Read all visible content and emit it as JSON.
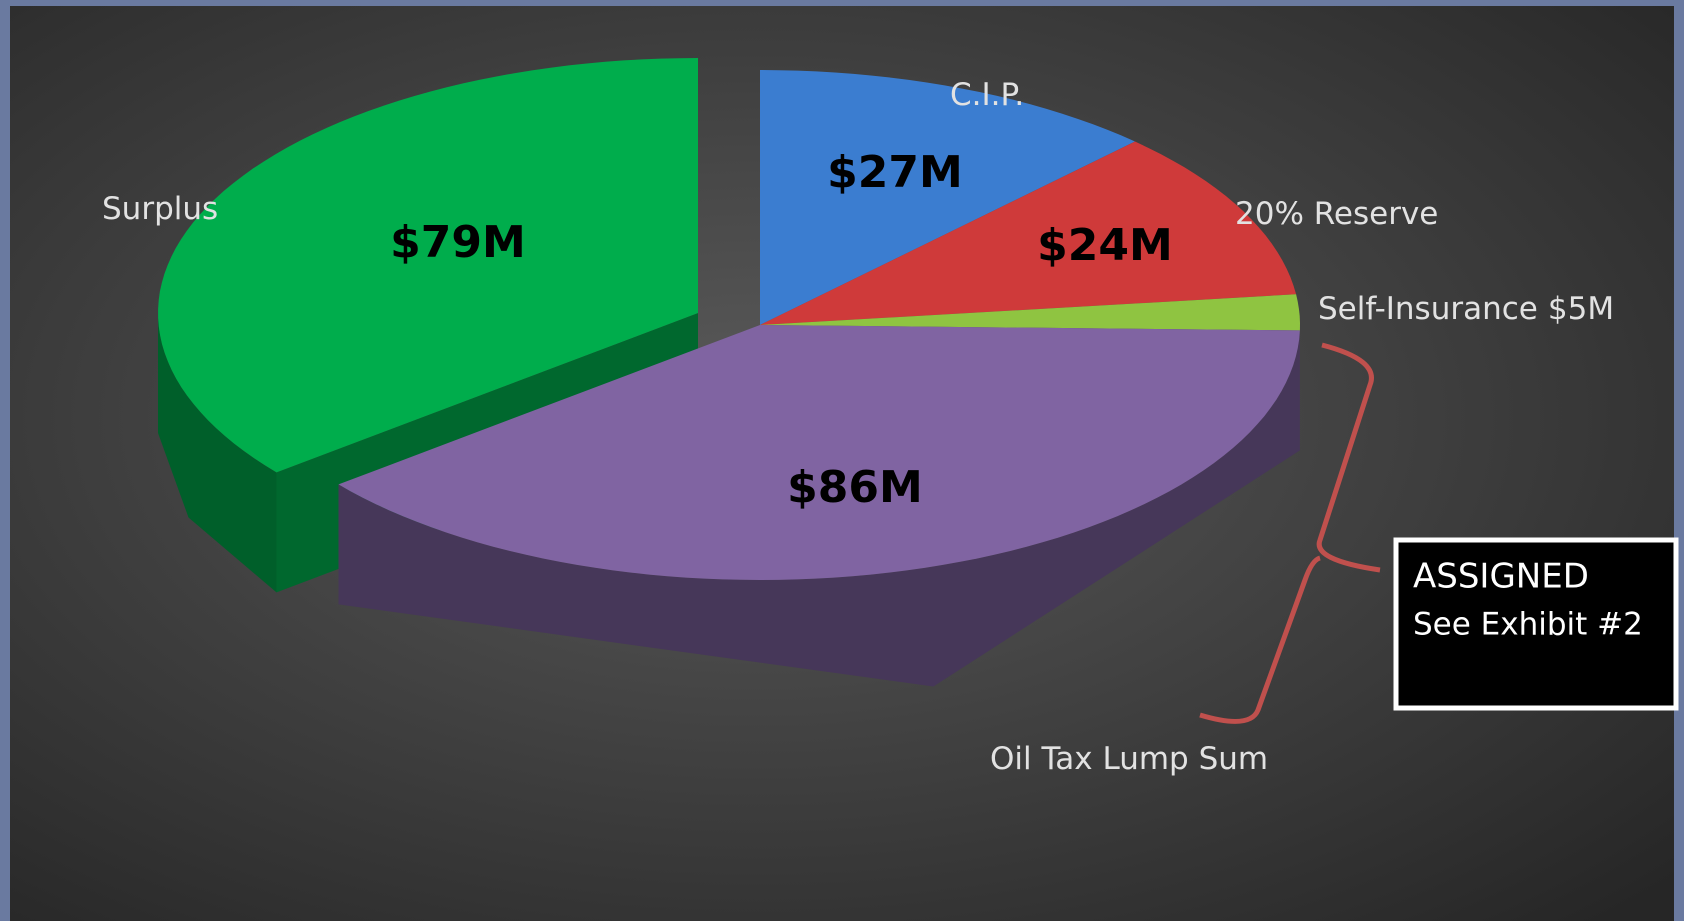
{
  "chart_data": {
    "type": "pie",
    "categories": [
      "C.I.P.",
      "20% Reserve",
      "Self-Insurance",
      "Oil Tax Lump Sum",
      "Surplus"
    ],
    "values": [
      27,
      24,
      5,
      86,
      79
    ],
    "value_labels": [
      "$27M",
      "$24M",
      "$5M",
      "$86M",
      "$79M"
    ],
    "colors": [
      "#3b7dd0",
      "#cf3a3a",
      "#8fc441",
      "#8064a2",
      "#00ad4c"
    ],
    "annotation": {
      "title": "ASSIGNED",
      "text": "See Exhibit #2"
    }
  }
}
